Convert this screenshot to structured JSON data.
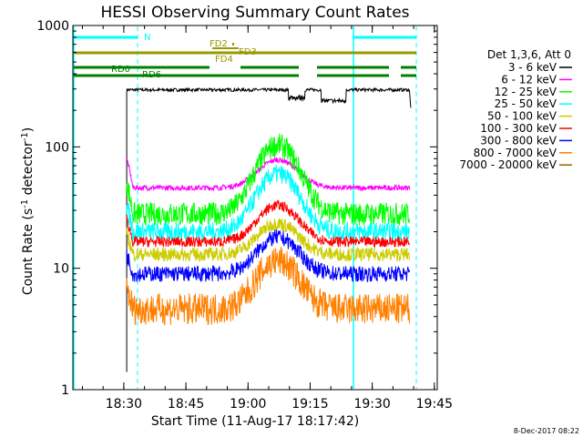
{
  "chart_data": {
    "type": "line",
    "title": "HESSI Observing Summary Count Rates",
    "xlabel": "Start Time (11-Aug-17 18:17:42)",
    "ylabel_main": "Count Rate (s",
    "ylabel_sup1": "-1",
    "ylabel_mid": " detector",
    "ylabel_sup2": "-1",
    "ylabel_end": ")",
    "yscale": "log",
    "ylim": [
      1,
      1000
    ],
    "xlim_minutes": [
      0,
      88
    ],
    "x_ticks": [
      {
        "m": 12.3,
        "label": "18:30"
      },
      {
        "m": 27.3,
        "label": "18:45"
      },
      {
        "m": 42.3,
        "label": "19:00"
      },
      {
        "m": 57.3,
        "label": "19:15"
      },
      {
        "m": 72.3,
        "label": "19:30"
      },
      {
        "m": 87.3,
        "label": "19:45"
      }
    ],
    "y_ticks": [
      {
        "v": 1,
        "label": "1"
      },
      {
        "v": 10,
        "label": "10"
      },
      {
        "v": 100,
        "label": "100"
      },
      {
        "v": 1000,
        "label": "1000"
      }
    ],
    "legend_header": "Det 1,3,6, Att 0",
    "legend_position": "right",
    "series": [
      {
        "name": "3 - 6 keV",
        "color": "#000000",
        "shape": "flat"
      },
      {
        "name": "6 - 12 keV",
        "color": "#ff00ff",
        "shape": "flare"
      },
      {
        "name": "12 - 25 keV",
        "color": "#00ff00",
        "shape": "flare"
      },
      {
        "name": "25 - 50 keV",
        "color": "#00ffff",
        "shape": "flare"
      },
      {
        "name": "50 - 100 keV",
        "color": "#cccc00",
        "shape": "flare"
      },
      {
        "name": "100 - 300 keV",
        "color": "#ff0000",
        "shape": "flare"
      },
      {
        "name": "300 - 800 keV",
        "color": "#0000ff",
        "shape": "flare"
      },
      {
        "name": "800 - 7000 keV",
        "color": "#ff8000",
        "shape": "flare"
      },
      {
        "name": "7000 - 20000 keV",
        "color": "#996600",
        "shape": "none"
      }
    ],
    "annotations": {
      "night_label": "N",
      "fd_labels": [
        "FD2",
        "FD3",
        "FD4"
      ],
      "rd_labels": [
        "RD0",
        "RD6"
      ]
    },
    "colors": {
      "night": "#00ffff",
      "flare_flag": "#999900",
      "rd_flag": "#008000"
    }
  },
  "footer": {
    "timestamp": "8-Dec-2017 08:22"
  }
}
